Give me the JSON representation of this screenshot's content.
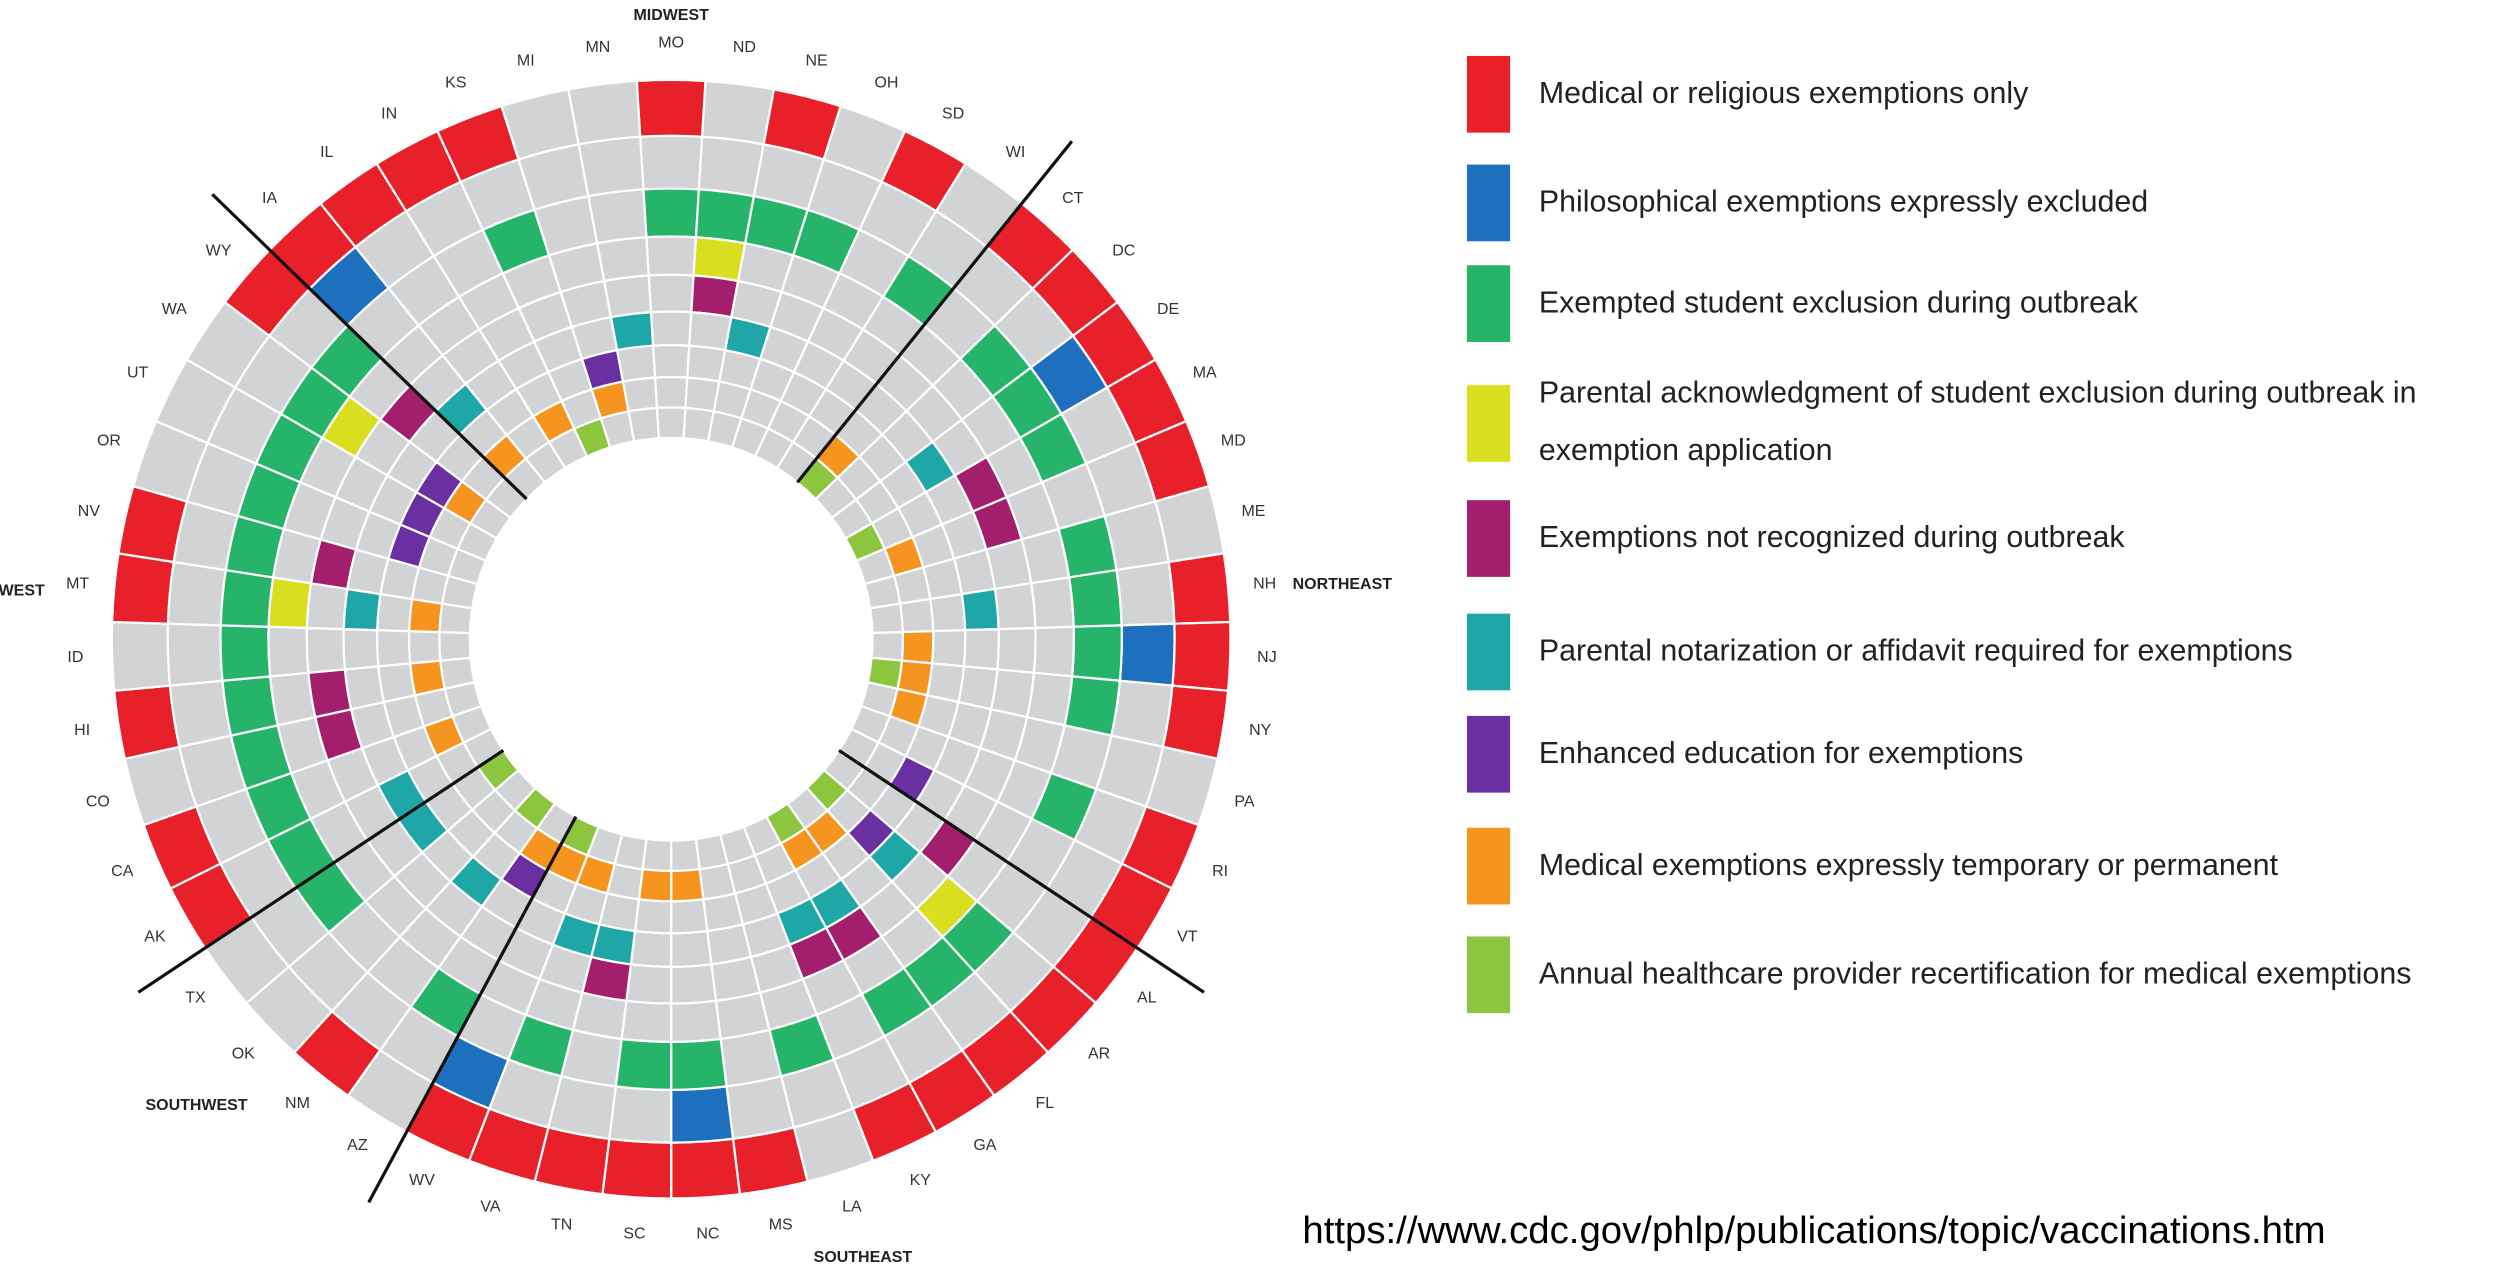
{
  "chart_data": {
    "type": "radial_heatmap",
    "categories": [
      "MO",
      "ND",
      "NE",
      "OH",
      "SD",
      "WI",
      "CT",
      "DC",
      "DE",
      "MA",
      "MD",
      "ME",
      "NH",
      "NJ",
      "NY",
      "PA",
      "RI",
      "VT",
      "AL",
      "AR",
      "FL",
      "GA",
      "KY",
      "LA",
      "MS",
      "NC",
      "SC",
      "TN",
      "VA",
      "WV",
      "AZ",
      "NM",
      "OK",
      "TX",
      "AK",
      "CA",
      "CO",
      "HI",
      "ID",
      "MT",
      "NV",
      "OR",
      "UT",
      "WA",
      "WY",
      "IA",
      "IL",
      "IN",
      "KS",
      "MI",
      "MN"
    ],
    "regions": [
      "MIDWEST",
      "NORTHEAST",
      "SOUTHEAST",
      "SOUTHWEST",
      "WEST"
    ],
    "series": [
      {
        "name": "Medical or religious exemptions only",
        "color": "#e8202a",
        "values": [
          1,
          0,
          1,
          0,
          1,
          0,
          1,
          1,
          1,
          1,
          1,
          0,
          1,
          1,
          1,
          0,
          1,
          1,
          1,
          1,
          1,
          1,
          1,
          0,
          1,
          1,
          1,
          1,
          1,
          1,
          0,
          1,
          0,
          0,
          1,
          1,
          0,
          1,
          0,
          1,
          1,
          0,
          0,
          0,
          1,
          1,
          1,
          1,
          1,
          0,
          0
        ]
      },
      {
        "name": "Philosophical exemptions expressly excluded",
        "color": "#1f6fbf",
        "values": [
          0,
          0,
          0,
          0,
          0,
          0,
          0,
          0,
          1,
          0,
          0,
          0,
          0,
          1,
          0,
          0,
          0,
          0,
          0,
          0,
          0,
          0,
          0,
          0,
          0,
          1,
          0,
          0,
          0,
          1,
          0,
          0,
          0,
          0,
          0,
          0,
          0,
          0,
          0,
          0,
          0,
          0,
          0,
          0,
          0,
          1,
          0,
          0,
          0,
          0,
          0
        ]
      },
      {
        "name": "Exempted student exclusion during outbreak",
        "color": "#25b46a",
        "values": [
          1,
          1,
          1,
          1,
          0,
          1,
          0,
          1,
          1,
          1,
          0,
          1,
          1,
          1,
          1,
          0,
          1,
          0,
          0,
          1,
          1,
          1,
          0,
          1,
          0,
          1,
          1,
          0,
          1,
          0,
          1,
          0,
          0,
          1,
          1,
          1,
          1,
          1,
          1,
          1,
          1,
          1,
          1,
          1,
          1,
          0,
          0,
          0,
          1,
          0,
          0
        ]
      },
      {
        "name": "Parental acknowledgment of student exclusion during outbreak in exemption application",
        "color": "#d9df1e",
        "values": [
          0,
          1,
          0,
          0,
          0,
          0,
          0,
          0,
          0,
          0,
          0,
          0,
          0,
          0,
          0,
          0,
          0,
          0,
          0,
          1,
          0,
          0,
          0,
          0,
          0,
          0,
          0,
          0,
          0,
          0,
          0,
          0,
          0,
          0,
          0,
          0,
          0,
          0,
          0,
          1,
          0,
          0,
          0,
          1,
          0,
          0,
          0,
          0,
          0,
          0,
          0
        ]
      },
      {
        "name": "Exemptions not recognized during outbreak",
        "color": "#a31f6e",
        "values": [
          0,
          1,
          0,
          0,
          0,
          0,
          0,
          0,
          0,
          1,
          1,
          0,
          0,
          0,
          0,
          0,
          0,
          0,
          1,
          0,
          0,
          1,
          1,
          0,
          0,
          0,
          0,
          1,
          0,
          0,
          0,
          0,
          0,
          0,
          0,
          0,
          1,
          1,
          0,
          0,
          1,
          0,
          0,
          0,
          1,
          0,
          0,
          0,
          0,
          0,
          0
        ]
      },
      {
        "name": "Parental notarization or affidavit required for exemptions",
        "color": "#1fa6a6",
        "values": [
          0,
          0,
          1,
          0,
          0,
          0,
          0,
          0,
          1,
          0,
          0,
          0,
          1,
          0,
          0,
          0,
          0,
          0,
          0,
          1,
          0,
          1,
          1,
          0,
          0,
          0,
          0,
          1,
          1,
          0,
          0,
          1,
          0,
          1,
          1,
          0,
          0,
          0,
          0,
          1,
          0,
          0,
          0,
          0,
          0,
          1,
          0,
          0,
          0,
          0,
          1
        ]
      },
      {
        "name": "Enhanced education for exemptions",
        "color": "#6a2fa0",
        "values": [
          0,
          0,
          0,
          0,
          0,
          0,
          0,
          0,
          0,
          0,
          0,
          0,
          0,
          0,
          0,
          0,
          0,
          1,
          0,
          1,
          0,
          0,
          0,
          0,
          0,
          0,
          0,
          0,
          0,
          0,
          1,
          0,
          0,
          0,
          0,
          0,
          0,
          0,
          0,
          0,
          0,
          1,
          1,
          1,
          0,
          0,
          0,
          0,
          0,
          1,
          0
        ]
      },
      {
        "name": "Medical exemptions expressly temporary or permanent",
        "color": "#f5941e",
        "values": [
          0,
          0,
          0,
          0,
          0,
          0,
          1,
          0,
          0,
          0,
          1,
          0,
          0,
          1,
          1,
          1,
          0,
          0,
          0,
          0,
          1,
          1,
          0,
          0,
          0,
          1,
          1,
          0,
          1,
          1,
          1,
          0,
          0,
          0,
          0,
          1,
          0,
          1,
          0,
          1,
          0,
          0,
          0,
          1,
          0,
          1,
          0,
          1,
          0,
          1,
          0
        ]
      },
      {
        "name": "Annual healthcare provider recertification for medical exemptions",
        "color": "#8cc63f",
        "values": [
          0,
          0,
          0,
          0,
          0,
          0,
          1,
          0,
          0,
          1,
          0,
          0,
          0,
          0,
          1,
          0,
          0,
          0,
          0,
          1,
          0,
          1,
          0,
          0,
          0,
          0,
          0,
          0,
          0,
          1,
          0,
          1,
          0,
          1,
          0,
          0,
          0,
          0,
          0,
          0,
          0,
          0,
          0,
          0,
          0,
          0,
          0,
          0,
          1,
          0,
          0
        ]
      }
    ]
  },
  "source": "https://www.cdc.gov/phlp/publications/topic/vaccinations.htm"
}
